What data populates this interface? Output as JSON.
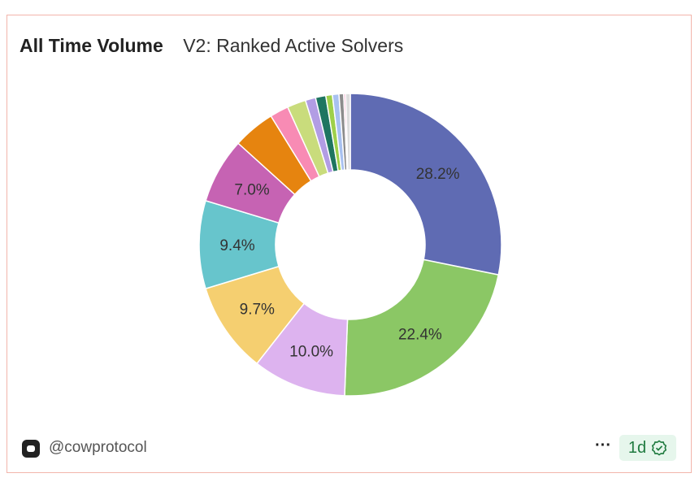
{
  "header": {
    "title": "All Time Volume",
    "subtitle": "V2: Ranked Active Solvers"
  },
  "footer": {
    "handle": "@cowprotocol",
    "more_label": "···",
    "age": "1d",
    "verified_icon": "check-badge-icon"
  },
  "chart_data": {
    "type": "pie",
    "donut": true,
    "title": "V2: Ranked Active Solvers",
    "values": [
      28.2,
      22.4,
      10.0,
      9.7,
      9.4,
      7.0,
      4.5,
      2.0,
      2.0,
      1.1,
      1.1,
      0.7,
      0.7,
      0.5,
      0.2,
      0.5
    ],
    "labels": [
      "28.2%",
      "22.4%",
      "10.0%",
      "9.7%",
      "9.4%",
      "7.0%",
      "",
      "",
      "",
      "",
      "",
      "",
      "",
      "",
      "",
      ""
    ],
    "colors": [
      "#5f6bb3",
      "#8bc765",
      "#ddb3ef",
      "#f5cf70",
      "#67c5cc",
      "#c663b3",
      "#e6840f",
      "#f88bb4",
      "#c9dc7c",
      "#b29de4",
      "#1e7560",
      "#9ed04a",
      "#a8c1f0",
      "#8c8c8c",
      "#f2a7c8",
      "#dddddd"
    ]
  }
}
